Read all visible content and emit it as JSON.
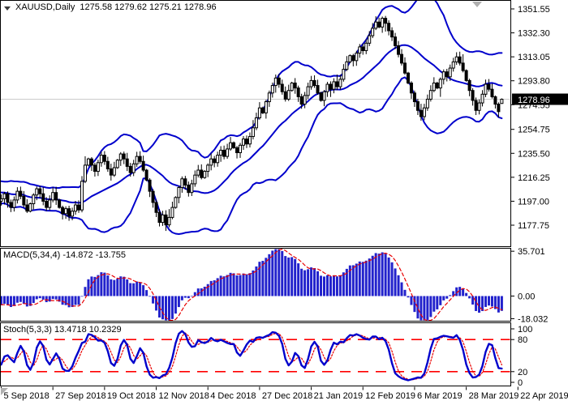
{
  "window": {
    "symbol_period": "XAUUSD,Daily",
    "ohlc_text": "1275.58 1279.62 1275.21 1278.96"
  },
  "colors": {
    "background": "#FFFFFF",
    "border": "#000000",
    "band_blue": "#0000CC",
    "macd_bar_blue": "#2222CC",
    "signal_red": "#E80000",
    "level_red": "#FF0000",
    "stoch_blue": "#0000CC",
    "current_price_line": "#CBCBCB",
    "price_tag_bg": "#000000",
    "price_tag_text": "#FFFFFF",
    "bull_body": "#FFFFFF",
    "bear_body": "#000000",
    "candle_outline": "#000000",
    "axis_text": "#000000",
    "marker_gray": "#B0B0B0"
  },
  "chart_data": {
    "type": "candlestick",
    "title": "XAUUSD,Daily",
    "ohlc_display": {
      "open": "1275.58",
      "high": "1279.62",
      "low": "1275.21",
      "close": "1278.96"
    },
    "price_axis_ticks": [
      "1351.55",
      "1332.30",
      "1313.05",
      "1293.80",
      "1274.55",
      "1254.75",
      "1235.50",
      "1216.25",
      "1197.00",
      "1177.75"
    ],
    "current_price": 1278.96,
    "current_price_label": "1278.96",
    "x_tick_labels": [
      "5 Sep 2018",
      "27 Sep 2018",
      "19 Oct 2018",
      "12 Nov 2018",
      "4 Dec 2018",
      "27 Dec 2018",
      "21 Jan 2019",
      "12 Feb 2019",
      "6 Mar 2019",
      "28 Mar 2019",
      "22 Apr 2019"
    ],
    "candles_per_x_tick": 16,
    "grid": false,
    "legend": "none",
    "overlays": [
      {
        "name": "Bollinger Bands",
        "period": 20,
        "deviation": 2
      }
    ],
    "warmup_closes_estimated": [
      1212,
      1209,
      1206,
      1210,
      1207,
      1203,
      1206,
      1202,
      1199,
      1203,
      1200,
      1197
    ],
    "closes_estimated": [
      1199,
      1203,
      1196,
      1192,
      1198,
      1205,
      1201,
      1194,
      1189,
      1195,
      1202,
      1207,
      1203,
      1197,
      1192,
      1198,
      1204,
      1198,
      1192,
      1187,
      1191,
      1185,
      1189,
      1194,
      1190,
      1213,
      1226,
      1231,
      1226,
      1221,
      1228,
      1234,
      1229,
      1223,
      1218,
      1224,
      1230,
      1235,
      1231,
      1225,
      1220,
      1227,
      1233,
      1229,
      1222,
      1214,
      1205,
      1196,
      1188,
      1180,
      1186,
      1178,
      1184,
      1192,
      1200,
      1208,
      1215,
      1210,
      1204,
      1211,
      1218,
      1222,
      1216,
      1221,
      1226,
      1231,
      1228,
      1234,
      1238,
      1233,
      1239,
      1244,
      1240,
      1236,
      1242,
      1247,
      1243,
      1249,
      1256,
      1264,
      1272,
      1268,
      1277,
      1284,
      1290,
      1296,
      1291,
      1285,
      1279,
      1286,
      1292,
      1288,
      1281,
      1275,
      1282,
      1289,
      1294,
      1290,
      1284,
      1278,
      1285,
      1291,
      1287,
      1293,
      1289,
      1295,
      1303,
      1309,
      1314,
      1310,
      1316,
      1321,
      1318,
      1324,
      1330,
      1336,
      1341,
      1337,
      1344,
      1340,
      1334,
      1329,
      1322,
      1315,
      1308,
      1300,
      1292,
      1284,
      1277,
      1270,
      1265,
      1272,
      1279,
      1286,
      1292,
      1288,
      1295,
      1301,
      1297,
      1304,
      1309,
      1313,
      1308,
      1302,
      1294,
      1286,
      1278,
      1270,
      1276,
      1283,
      1291,
      1287,
      1281,
      1275,
      1269,
      1278.96
    ],
    "last_candle_ohlc": [
      1275.58,
      1279.62,
      1275.21,
      1278.96
    ],
    "macd": {
      "label": "MACD(5,34,4) -14.872 -13.755",
      "fast": 5,
      "slow": 34,
      "signal_period": 4,
      "axis_ticks": [
        "35.701",
        "0.00",
        "-18.032"
      ],
      "current_main": -14.872,
      "current_signal": -13.755
    },
    "stoch": {
      "label": "Stoch(5,3,3) 13.4718 10.2329",
      "k_period": 5,
      "slowing": 3,
      "d_period": 3,
      "axis_ticks": [
        "100",
        "80",
        "20",
        "0"
      ],
      "levels": [
        80,
        20
      ],
      "current_k": 13.4718,
      "current_d": 10.2329
    }
  }
}
